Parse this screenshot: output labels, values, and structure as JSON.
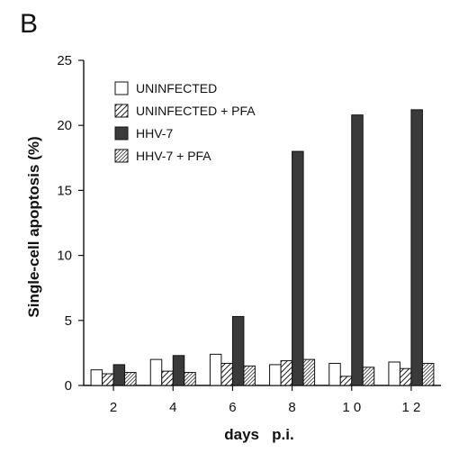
{
  "panel_label": "B",
  "chart_data": {
    "type": "bar",
    "title": "",
    "xlabel": "days   p.i.",
    "ylabel": "Single-cell   apoptosis   (%)",
    "categories": [
      "2",
      "4",
      "6",
      "8",
      "1 0",
      "1 2"
    ],
    "ylim": [
      0,
      25
    ],
    "yticks": [
      0,
      5,
      10,
      15,
      20,
      25
    ],
    "grid": false,
    "legend_position": "top-left",
    "series": [
      {
        "name": "UNINFECTED",
        "style": "open",
        "values": [
          1.2,
          2.0,
          2.4,
          1.6,
          1.7,
          1.8
        ]
      },
      {
        "name": "UNINFECTED + PFA",
        "style": "hatched-wide",
        "values": [
          0.9,
          1.1,
          1.7,
          1.9,
          0.7,
          1.3
        ]
      },
      {
        "name": "HHV-7",
        "style": "solid-dark",
        "values": [
          1.6,
          2.3,
          5.3,
          18.0,
          20.8,
          21.2
        ]
      },
      {
        "name": "HHV-7 + PFA",
        "style": "hatched-fine",
        "values": [
          1.0,
          1.0,
          1.5,
          2.0,
          1.4,
          1.7
        ]
      }
    ]
  }
}
